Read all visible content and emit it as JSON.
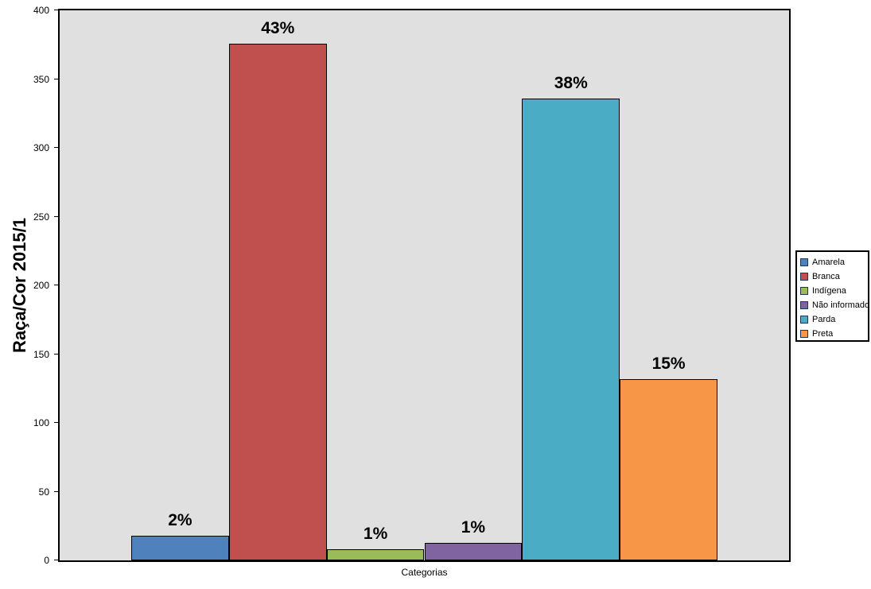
{
  "chart_data": {
    "type": "bar",
    "title": "",
    "ylabel": "Raça/Cor 2015/1",
    "xlabel": "Categorias",
    "ylim": [
      0,
      400
    ],
    "yticks": [
      0,
      50,
      100,
      150,
      200,
      250,
      300,
      350,
      400
    ],
    "grid": false,
    "legend_position": "right",
    "plot_background": "#E0E0E0",
    "bar_border_color": "#000000",
    "categories": [
      "Amarela",
      "Branca",
      "Indígena",
      "Não informado",
      "Parda",
      "Preta"
    ],
    "series": [
      {
        "name": "Amarela",
        "value": 18,
        "label": "2%",
        "color": "#4F81BD"
      },
      {
        "name": "Branca",
        "value": 376,
        "label": "43%",
        "color": "#C0504D"
      },
      {
        "name": "Indígena",
        "value": 8,
        "label": "1%",
        "color": "#9BBB59"
      },
      {
        "name": "Não informado",
        "value": 13,
        "label": "1%",
        "color": "#8064A2"
      },
      {
        "name": "Parda",
        "value": 336,
        "label": "38%",
        "color": "#4BACC6"
      },
      {
        "name": "Preta",
        "value": 132,
        "label": "15%",
        "color": "#F79646"
      }
    ]
  }
}
